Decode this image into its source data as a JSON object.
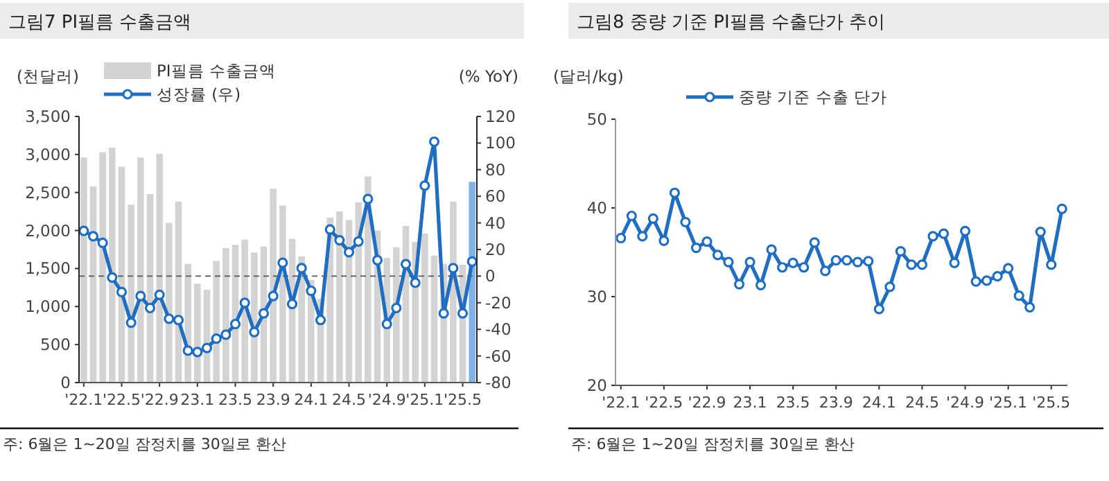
{
  "chart_data": [
    {
      "type": "bar",
      "title": "그림7  PI필름 수출금액",
      "ylabel": "(천달러)",
      "y2label": "(% YoY)",
      "marker": "circle",
      "legend": "top",
      "grid": false,
      "categories": [
        "'22.1",
        null,
        null,
        null,
        "'22.5",
        null,
        null,
        null,
        "'22.9",
        null,
        null,
        null,
        "23.1",
        null,
        null,
        null,
        "23.5",
        null,
        null,
        null,
        "23.9",
        null,
        null,
        null,
        "24.1",
        null,
        null,
        null,
        "24.5",
        null,
        null,
        null,
        "'24.9",
        null,
        null,
        null,
        "'25.1",
        null,
        null,
        null,
        "'25.5",
        null
      ],
      "series": [
        {
          "name": "PI필름 수출금액",
          "type": "bar",
          "colors": [
            "#d3d3d3",
            "#d3d3d3",
            "#d3d3d3",
            "#d3d3d3",
            "#d3d3d3",
            "#d3d3d3",
            "#d3d3d3",
            "#d3d3d3",
            "#d3d3d3",
            "#d3d3d3",
            "#d3d3d3",
            "#d3d3d3",
            "#d3d3d3",
            "#d3d3d3",
            "#d3d3d3",
            "#d3d3d3",
            "#d3d3d3",
            "#d3d3d3",
            "#d3d3d3",
            "#d3d3d3",
            "#d3d3d3",
            "#d3d3d3",
            "#d3d3d3",
            "#d3d3d3",
            "#d3d3d3",
            "#d3d3d3",
            "#d3d3d3",
            "#d3d3d3",
            "#d3d3d3",
            "#d3d3d3",
            "#d3d3d3",
            "#d3d3d3",
            "#d3d3d3",
            "#d3d3d3",
            "#d3d3d3",
            "#d3d3d3",
            "#d3d3d3",
            "#d3d3d3",
            "#d3d3d3",
            "#d3d3d3",
            "#d3d3d3",
            "#7fb2e5"
          ],
          "values": [
            2960,
            2580,
            3030,
            3090,
            2840,
            2340,
            2960,
            2480,
            3010,
            2100,
            2380,
            1560,
            1300,
            1220,
            1600,
            1770,
            1810,
            1880,
            1710,
            1790,
            2550,
            2330,
            1890,
            1660,
            1350,
            1100,
            2170,
            2250,
            2140,
            2370,
            2710,
            2000,
            1640,
            1780,
            2060,
            1850,
            1960,
            1670,
            1560,
            2380,
            1550,
            2640
          ]
        },
        {
          "name": "성장률 (우)",
          "type": "line",
          "axis": "y2",
          "color": "#1f6ec2",
          "values": [
            34,
            30,
            25,
            -1,
            -12,
            -35,
            -15,
            -24,
            -14,
            -32,
            -33,
            -56,
            -57,
            -54,
            -47,
            -44,
            -36,
            -20,
            -42,
            -28,
            -15,
            10,
            -21,
            6,
            -11,
            -33,
            35,
            27,
            18,
            26,
            58,
            12,
            -36,
            -24,
            9,
            -5,
            68,
            101,
            -28,
            6,
            -28,
            11
          ]
        }
      ],
      "ylim": [
        0,
        3500
      ],
      "yticks": [
        0,
        {
          "value": 500,
          "label": "500"
        },
        {
          "value": 1000,
          "label": "1,000"
        },
        {
          "value": 1500,
          "label": "1,500"
        },
        {
          "value": 2000,
          "label": "2,000"
        },
        {
          "value": 2500,
          "label": "2,500"
        },
        {
          "value": 3000,
          "label": "3,000"
        },
        {
          "value": 3500,
          "label": "3,500"
        }
      ],
      "y2lim": [
        -80,
        120
      ],
      "y2ticks": [
        -80,
        -60,
        -40,
        -20,
        0,
        20,
        40,
        60,
        80,
        100,
        120
      ],
      "ref_lines": [
        {
          "axis": "y2",
          "value": 0,
          "line_style": "dashed",
          "color": "#555555"
        }
      ],
      "annotations": [
        "주: 6월은 1~20일 잠정치를 30일로 환산"
      ]
    },
    {
      "type": "line",
      "title": "그림8  중량 기준 PI필름 수출단가 추이",
      "ylabel": "(달러/kg)",
      "marker": "circle",
      "legend": "top",
      "grid": false,
      "categories": [
        "'22.1",
        null,
        null,
        null,
        "'22.5",
        null,
        null,
        null,
        "'22.9",
        null,
        null,
        null,
        "23.1",
        null,
        null,
        null,
        "23.5",
        null,
        null,
        null,
        "23.9",
        null,
        null,
        null,
        "24.1",
        null,
        null,
        null,
        "24.5",
        null,
        null,
        null,
        "'24.9",
        null,
        null,
        null,
        "'25.1",
        null,
        null,
        null,
        "'25.5",
        null
      ],
      "series": [
        {
          "name": "중량 기준 수출 단가",
          "color": "#1f6ec2",
          "values": [
            36.6,
            39.1,
            36.8,
            38.8,
            36.3,
            41.7,
            38.4,
            35.5,
            36.2,
            34.7,
            33.9,
            31.4,
            33.9,
            31.3,
            35.3,
            33.3,
            33.8,
            33.3,
            36.1,
            32.9,
            34.1,
            34.1,
            33.9,
            34.0,
            28.6,
            31.1,
            35.1,
            33.6,
            33.6,
            36.8,
            37.1,
            33.8,
            37.4,
            31.7,
            31.8,
            32.3,
            33.2,
            30.1,
            28.8,
            37.3,
            33.6,
            39.9
          ]
        }
      ],
      "ylim": [
        20,
        50
      ],
      "yticks": [
        20,
        30,
        40,
        50
      ],
      "annotations": [
        "주: 6월은 1~20일 잠정치를 30일로 환산"
      ]
    }
  ]
}
